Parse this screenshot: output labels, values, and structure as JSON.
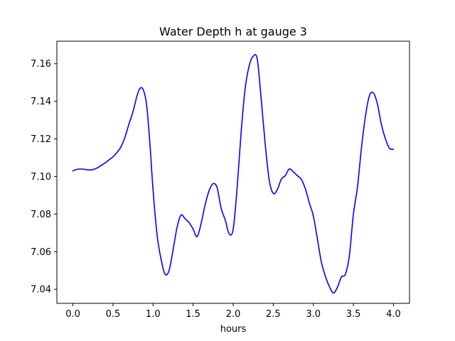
{
  "chart_data": {
    "type": "line",
    "title": "Water Depth h at gauge 3",
    "xlabel": "hours",
    "ylabel": "",
    "xlim": [
      -0.2,
      4.2
    ],
    "ylim": [
      7.0325,
      7.172
    ],
    "xticks": [
      0.0,
      0.5,
      1.0,
      1.5,
      2.0,
      2.5,
      3.0,
      3.5,
      4.0
    ],
    "xtick_labels": [
      "0.0",
      "0.5",
      "1.0",
      "1.5",
      "2.0",
      "2.5",
      "3.0",
      "3.5",
      "4.0"
    ],
    "yticks": [
      7.04,
      7.06,
      7.08,
      7.1,
      7.12,
      7.14,
      7.16
    ],
    "ytick_labels": [
      "7.04",
      "7.06",
      "7.08",
      "7.10",
      "7.12",
      "7.14",
      "7.16"
    ],
    "grid": false,
    "series": [
      {
        "color": "#0000ff",
        "x": [
          0.0,
          0.05,
          0.1,
          0.15,
          0.2,
          0.25,
          0.3,
          0.35,
          0.4,
          0.45,
          0.5,
          0.55,
          0.6,
          0.65,
          0.7,
          0.75,
          0.8,
          0.84,
          0.88,
          0.92,
          0.96,
          1.0,
          1.05,
          1.1,
          1.15,
          1.2,
          1.25,
          1.3,
          1.35,
          1.4,
          1.45,
          1.5,
          1.55,
          1.6,
          1.65,
          1.7,
          1.75,
          1.8,
          1.85,
          1.9,
          1.95,
          2.0,
          2.05,
          2.1,
          2.15,
          2.2,
          2.25,
          2.3,
          2.35,
          2.4,
          2.45,
          2.5,
          2.55,
          2.6,
          2.65,
          2.7,
          2.75,
          2.8,
          2.85,
          2.9,
          2.95,
          3.0,
          3.05,
          3.1,
          3.15,
          3.2,
          3.25,
          3.3,
          3.35,
          3.4,
          3.45,
          3.5,
          3.55,
          3.6,
          3.65,
          3.7,
          3.75,
          3.8,
          3.85,
          3.9,
          3.95,
          4.0
        ],
        "y": [
          7.103,
          7.1038,
          7.104,
          7.1038,
          7.1035,
          7.1037,
          7.1045,
          7.1058,
          7.1072,
          7.1088,
          7.1105,
          7.1128,
          7.1158,
          7.121,
          7.128,
          7.1345,
          7.143,
          7.147,
          7.146,
          7.138,
          7.118,
          7.093,
          7.069,
          7.056,
          7.048,
          7.05,
          7.061,
          7.073,
          7.0795,
          7.0775,
          7.0755,
          7.072,
          7.068,
          7.075,
          7.085,
          7.0925,
          7.0962,
          7.094,
          7.083,
          7.077,
          7.0695,
          7.072,
          7.0945,
          7.124,
          7.147,
          7.159,
          7.164,
          7.1625,
          7.141,
          7.117,
          7.098,
          7.091,
          7.093,
          7.0985,
          7.1005,
          7.104,
          7.1025,
          7.1005,
          7.0985,
          7.0935,
          7.086,
          7.079,
          7.067,
          7.0545,
          7.047,
          7.0415,
          7.038,
          7.041,
          7.0465,
          7.048,
          7.058,
          7.08,
          7.094,
          7.115,
          7.132,
          7.143,
          7.1445,
          7.1385,
          7.1275,
          7.12,
          7.115,
          7.1145
        ]
      }
    ]
  }
}
